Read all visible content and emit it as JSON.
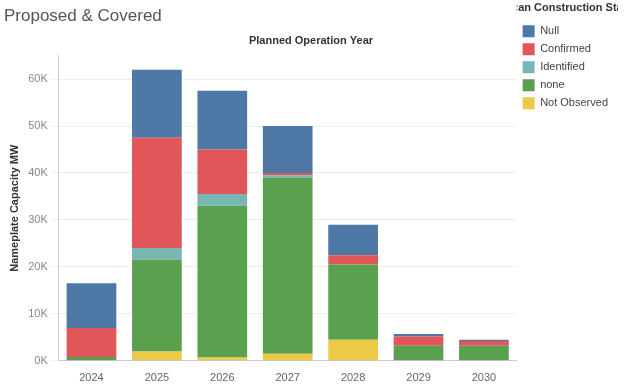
{
  "chart_data": {
    "type": "bar",
    "title": "Proposed & Covered",
    "x_label": "Planned Operation Year",
    "y_label": "Nameplate Capacity MW",
    "legend_title": "Vulcan Construction Status",
    "legend": "right",
    "stacked": true,
    "grid": true,
    "categories": [
      "2024",
      "2025",
      "2026",
      "2027",
      "2028",
      "2029",
      "2030"
    ],
    "series": [
      {
        "name": "Not Observed",
        "color": "#edc948",
        "values": [
          0,
          2000,
          700,
          1500,
          4500,
          0,
          0
        ]
      },
      {
        "name": "none",
        "color": "#59a14f",
        "values": [
          800,
          19500,
          32300,
          37500,
          16000,
          3200,
          3200
        ]
      },
      {
        "name": "Identified",
        "color": "#76b7b2",
        "values": [
          0,
          2500,
          2500,
          500,
          0,
          0,
          0
        ]
      },
      {
        "name": "Confirmed",
        "color": "#e15759",
        "values": [
          6200,
          23500,
          9500,
          500,
          2000,
          2000,
          1000
        ]
      },
      {
        "name": "Null",
        "color": "#4e79a7",
        "values": [
          9500,
          14500,
          12500,
          10000,
          6500,
          500,
          300
        ]
      }
    ],
    "ylim": [
      0,
      65000
    ],
    "yticks": [
      {
        "value": 0,
        "label": "0K"
      },
      {
        "value": 10000,
        "label": "10K"
      },
      {
        "value": 20000,
        "label": "20K"
      },
      {
        "value": 30000,
        "label": "30K"
      },
      {
        "value": 40000,
        "label": "40K"
      },
      {
        "value": 50000,
        "label": "50K"
      },
      {
        "value": 60000,
        "label": "60K"
      }
    ]
  }
}
